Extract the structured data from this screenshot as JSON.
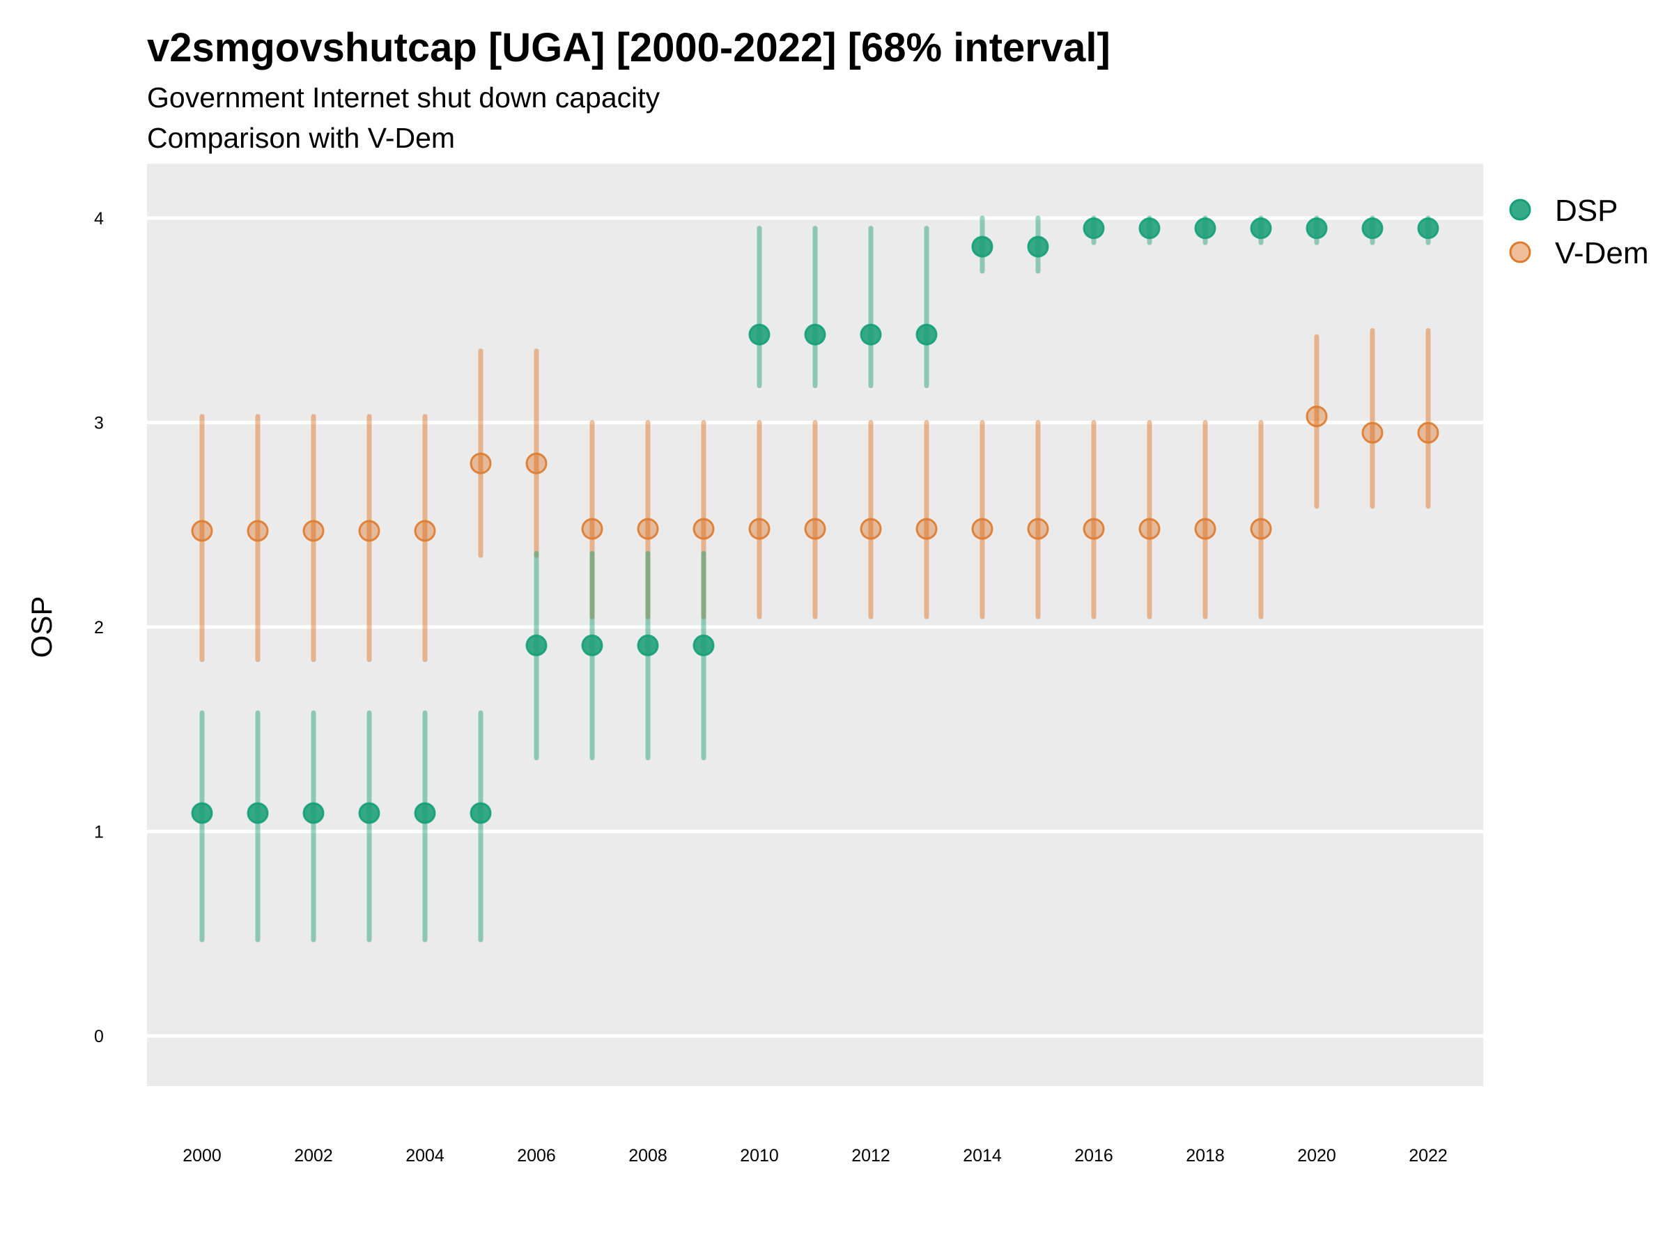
{
  "title": "v2smgovshutcap [UGA] [2000-2022] [68% interval]",
  "subtitle": "Government Internet shut down capacity",
  "subtitle2": "Comparison with V-Dem",
  "chart_data": {
    "type": "scatter",
    "subtype": "point-range",
    "title": "v2smgovshutcap [UGA] [2000-2022] [68% interval]",
    "xlabel": "",
    "ylabel": "OSP",
    "xlim": [
      2000,
      2022
    ],
    "ylim": [
      -0.25,
      4.25
    ],
    "grid": true,
    "legend_position": "right",
    "x_ticks": [
      "2000",
      "2002",
      "2004",
      "2006",
      "2008",
      "2010",
      "2012",
      "2014",
      "2016",
      "2018",
      "2020",
      "2022"
    ],
    "y_ticks": [
      "0",
      "1",
      "2",
      "3",
      "4"
    ],
    "x": [
      2000,
      2001,
      2002,
      2003,
      2004,
      2005,
      2006,
      2007,
      2008,
      2009,
      2010,
      2011,
      2012,
      2013,
      2014,
      2015,
      2016,
      2017,
      2018,
      2019,
      2020,
      2021,
      2022
    ],
    "series": [
      {
        "name": "DSP",
        "color": "#1b9e77",
        "values": [
          1.09,
          1.09,
          1.09,
          1.09,
          1.09,
          1.09,
          1.91,
          1.91,
          1.91,
          1.91,
          3.43,
          3.43,
          3.43,
          3.43,
          3.86,
          3.86,
          3.95,
          3.95,
          3.95,
          3.95,
          3.95,
          3.95,
          3.95
        ],
        "lower": [
          0.47,
          0.47,
          0.47,
          0.47,
          0.47,
          0.47,
          1.36,
          1.36,
          1.36,
          1.36,
          3.18,
          3.18,
          3.18,
          3.18,
          3.74,
          3.74,
          3.88,
          3.88,
          3.88,
          3.88,
          3.88,
          3.88,
          3.88
        ],
        "upper": [
          1.58,
          1.58,
          1.58,
          1.58,
          1.58,
          1.58,
          2.36,
          2.36,
          2.36,
          2.36,
          3.95,
          3.95,
          3.95,
          3.95,
          4.0,
          4.0,
          4.0,
          4.0,
          4.0,
          4.0,
          4.0,
          4.0,
          4.0
        ]
      },
      {
        "name": "V-Dem",
        "color": "#d95f02",
        "values": [
          2.47,
          2.47,
          2.47,
          2.47,
          2.47,
          2.8,
          2.8,
          2.48,
          2.48,
          2.48,
          2.48,
          2.48,
          2.48,
          2.48,
          2.48,
          2.48,
          2.48,
          2.48,
          2.48,
          2.48,
          3.03,
          2.95,
          2.95
        ],
        "lower": [
          1.84,
          1.84,
          1.84,
          1.84,
          1.84,
          2.35,
          2.35,
          2.05,
          2.05,
          2.05,
          2.05,
          2.05,
          2.05,
          2.05,
          2.05,
          2.05,
          2.05,
          2.05,
          2.05,
          2.05,
          2.59,
          2.59,
          2.59
        ],
        "upper": [
          3.03,
          3.03,
          3.03,
          3.03,
          3.03,
          3.35,
          3.35,
          3.0,
          3.0,
          3.0,
          3.0,
          3.0,
          3.0,
          3.0,
          3.0,
          3.0,
          3.0,
          3.0,
          3.0,
          3.0,
          3.42,
          3.45,
          3.45
        ]
      }
    ]
  }
}
